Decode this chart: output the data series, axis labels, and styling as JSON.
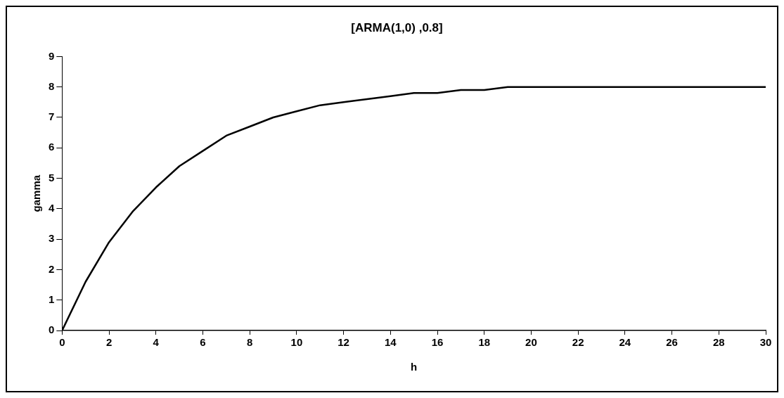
{
  "chart_data": {
    "type": "line",
    "title": "[ARMA(1,0) ,0.8]",
    "xlabel": "h",
    "ylabel": "gamma",
    "x": [
      0,
      1,
      2,
      3,
      4,
      5,
      6,
      7,
      8,
      9,
      10,
      11,
      12,
      13,
      14,
      15,
      16,
      17,
      18,
      19,
      20,
      21,
      22,
      23,
      24,
      25,
      26,
      27,
      28,
      29,
      30
    ],
    "series": [
      {
        "color": "#000000",
        "values": [
          0,
          1.6,
          2.9,
          3.9,
          4.7,
          5.4,
          5.9,
          6.4,
          6.7,
          7.0,
          7.2,
          7.4,
          7.5,
          7.6,
          7.7,
          7.8,
          7.8,
          7.9,
          7.9,
          8.0,
          8.0,
          8.0,
          8.0,
          8.0,
          8.0,
          8.0,
          8.0,
          8.0,
          8.0,
          8.0,
          8.0
        ]
      }
    ],
    "xlim": [
      0,
      30
    ],
    "xticks": [
      0,
      2,
      4,
      6,
      8,
      10,
      12,
      14,
      16,
      18,
      20,
      22,
      24,
      26,
      28,
      30
    ],
    "ylim": [
      0,
      9
    ],
    "yticks": [
      0,
      1,
      2,
      3,
      4,
      5,
      6,
      7,
      8,
      9
    ],
    "grid": false,
    "legend": false,
    "marker": "none",
    "line_style": "solid"
  }
}
